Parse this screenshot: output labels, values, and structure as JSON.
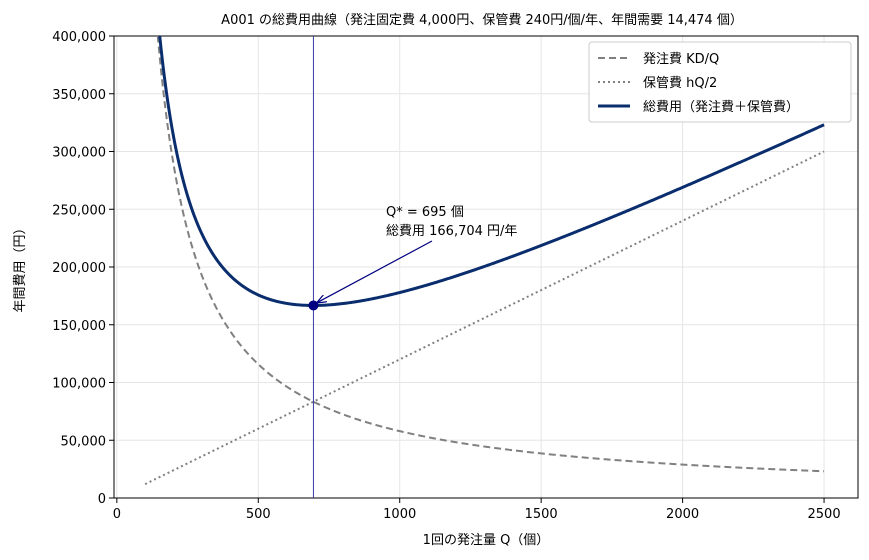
{
  "chart_data": {
    "type": "line",
    "title": "A001 の総費用曲線（発注固定費 4,000円、保管費 240円/個/年、年間需要 14,474 個）",
    "xlabel": "1回の発注量 Q（個）",
    "ylabel": "年間費用（円）",
    "xlim": [
      -10,
      2620
    ],
    "ylim": [
      0,
      400000
    ],
    "xticks": [
      0,
      500,
      1000,
      1500,
      2000,
      2500
    ],
    "xtick_labels": [
      "0",
      "500",
      "1000",
      "1500",
      "2000",
      "2500"
    ],
    "yticks": [
      0,
      50000,
      100000,
      150000,
      200000,
      250000,
      300000,
      350000,
      400000
    ],
    "ytick_labels": [
      "0",
      "50,000",
      "100,000",
      "150,000",
      "200,000",
      "250,000",
      "300,000",
      "350,000",
      "400,000"
    ],
    "grid": true,
    "legend_position": "top-right",
    "parameters": {
      "order_cost": 4000,
      "holding_cost": 240,
      "annual_demand": 14474
    },
    "q_range": [
      100,
      2500
    ],
    "series": [
      {
        "name": "発注費 KD/Q",
        "formula": "KD/Q",
        "style": "dashed",
        "color": "#808080"
      },
      {
        "name": "保管費 hQ/2",
        "formula": "hQ/2",
        "style": "dotted",
        "color": "#808080"
      },
      {
        "name": "総費用（発注費＋保管費）",
        "formula": "KD/Q + hQ/2",
        "style": "solid",
        "color": "#0a2d6e"
      }
    ],
    "optimum": {
      "q": 695,
      "total_cost": 166704,
      "marker_color": "#000080",
      "vline_color": "#3a3aa0"
    },
    "annotation": {
      "line1": "Q* = 695 個",
      "line2": "総費用 166,704 円/年"
    }
  }
}
